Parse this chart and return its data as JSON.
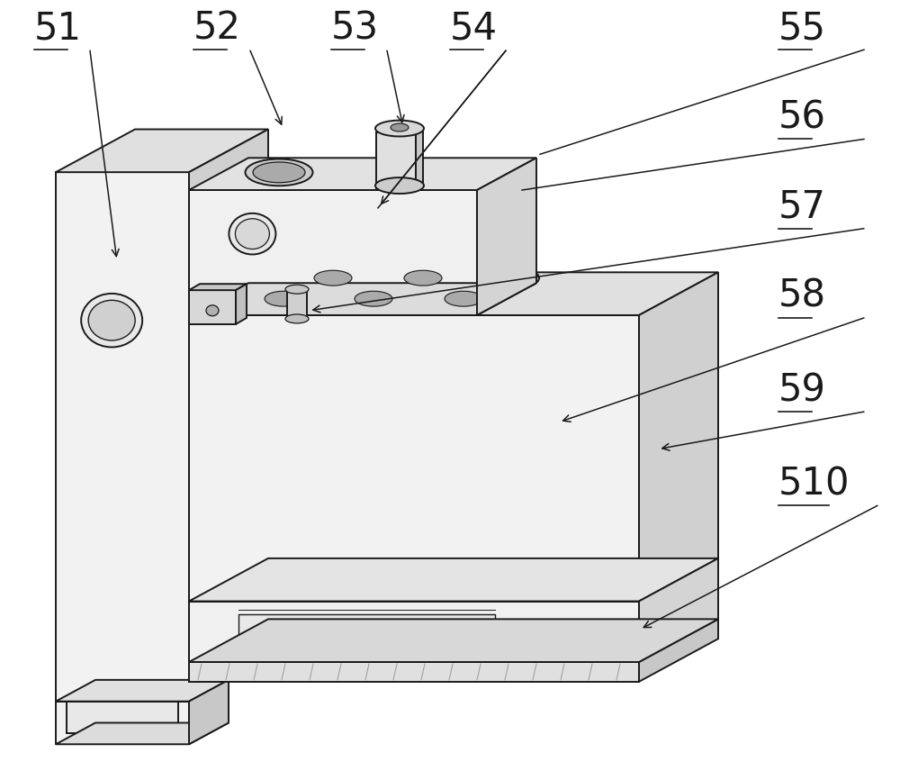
{
  "bg": "#ffffff",
  "lc": "#1a1a1a",
  "lw": 1.4,
  "fill_front": "#f2f2f2",
  "fill_top": "#e0e0e0",
  "fill_right": "#cccccc",
  "fill_dark": "#b0b0b0",
  "fill_hole": "#aaaaaa",
  "fill_hole_dark": "#888888",
  "fs_label": 30,
  "figsize": [
    10.0,
    8.66
  ]
}
